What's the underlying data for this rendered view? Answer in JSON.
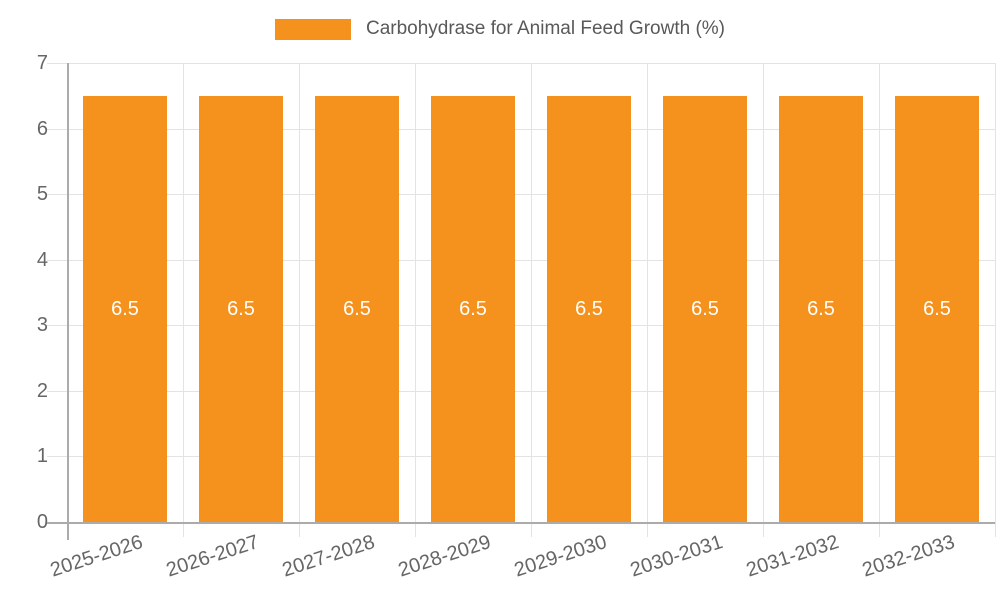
{
  "legend": {
    "label": "Carbohydrase for Animal Feed Growth (%)"
  },
  "chart_data": {
    "type": "bar",
    "title": "Carbohydrase for Animal Feed Growth (%)",
    "categories": [
      "2025-2026",
      "2026-2027",
      "2027-2028",
      "2028-2029",
      "2029-2030",
      "2030-2031",
      "2031-2032",
      "2032-2033"
    ],
    "values": [
      6.5,
      6.5,
      6.5,
      6.5,
      6.5,
      6.5,
      6.5,
      6.5
    ],
    "value_labels": [
      "6.5",
      "6.5",
      "6.5",
      "6.5",
      "6.5",
      "6.5",
      "6.5",
      "6.5"
    ],
    "ylim": [
      0,
      7
    ],
    "yticks": [
      0,
      1,
      2,
      3,
      4,
      5,
      6,
      7
    ],
    "grid": true,
    "legend_position": "top",
    "colors": {
      "bar": "#f5921e",
      "value_label": "#ffffff",
      "grid": "#e3e3e3",
      "axis": "#ababab",
      "tick_label": "#666666",
      "legend_text": "#595959"
    }
  }
}
